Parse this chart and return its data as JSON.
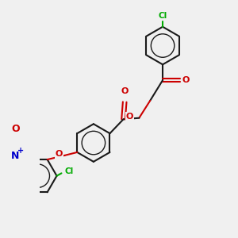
{
  "bg_color": "#f0f0f0",
  "bond_color": "#1a1a1a",
  "oxygen_color": "#cc0000",
  "nitrogen_color": "#0000cc",
  "chlorine_color": "#00aa00",
  "lw": 1.5,
  "lw_inner": 1.0,
  "figsize": [
    3.0,
    3.0
  ],
  "dpi": 100,
  "xlim": [
    -3.5,
    3.5
  ],
  "ylim": [
    -4.5,
    4.5
  ]
}
